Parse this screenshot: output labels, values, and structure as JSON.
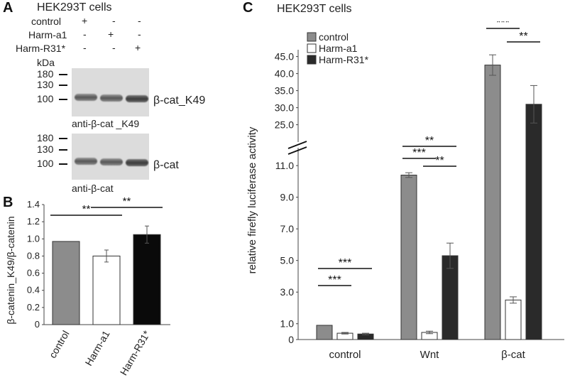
{
  "panel_a": {
    "letter": "A",
    "title": "HEK293T cells",
    "conditions": [
      {
        "label": "control",
        "signs": [
          "+",
          "-",
          "-"
        ]
      },
      {
        "label": "Harm-a1",
        "signs": [
          "-",
          "+",
          "-"
        ]
      },
      {
        "label": "Harm-R31*",
        "signs": [
          "-",
          "-",
          "+"
        ]
      }
    ],
    "kda_label": "kDa",
    "blot1": {
      "markers": [
        "180",
        "130",
        "100"
      ],
      "band_label": "β-cat_K49",
      "antibody": "anti-β-cat _K49"
    },
    "blot2": {
      "markers": [
        "180",
        "130",
        "100"
      ],
      "band_label": "β-cat",
      "antibody": "anti-β-cat"
    }
  },
  "panel_b": {
    "letter": "B"
  },
  "panel_c": {
    "letter": "C",
    "title": "HEK293T cells"
  },
  "chart_data": [
    {
      "type": "bar",
      "panel": "B",
      "categories": [
        "control",
        "Harm-a1",
        "Harm-R31*"
      ],
      "values": [
        0.97,
        0.8,
        1.05
      ],
      "errors": [
        0.0,
        0.07,
        0.1
      ],
      "colors": [
        "#8c8c8c",
        "#ffffff",
        "#0a0a0a"
      ],
      "ylabel": "β-catenin_K49/β-catenin",
      "yticks": [
        "0",
        "0.2",
        "0.4",
        "0.6",
        "0.8",
        "1.0",
        "1.2",
        "1.4"
      ],
      "ylim": [
        0,
        1.4
      ],
      "significance": [
        {
          "from": 0,
          "to": 1,
          "label": "**"
        },
        {
          "from": 1,
          "to": 2,
          "label": "**"
        }
      ]
    },
    {
      "type": "bar",
      "panel": "C",
      "categories": [
        "control",
        "Wnt",
        "β-cat"
      ],
      "series": [
        {
          "name": "control",
          "color": "#8c8c8c",
          "values": [
            0.9,
            10.4,
            42.5
          ],
          "errors": [
            0.0,
            0.15,
            3.0
          ]
        },
        {
          "name": "Harm-a1",
          "color": "#ffffff",
          "values": [
            0.4,
            0.45,
            2.5
          ],
          "errors": [
            0.05,
            0.08,
            0.2
          ]
        },
        {
          "name": "Harm-R31*",
          "color": "#2a2a2a",
          "values": [
            0.35,
            5.3,
            31.0
          ],
          "errors": [
            0.05,
            0.8,
            5.5
          ]
        }
      ],
      "ylabel": "relative firefly luciferase activity",
      "yticks_lower": [
        "0",
        "1.0",
        "3.0",
        "5.0",
        "7.0",
        "9.0",
        "11.0"
      ],
      "yticks_upper": [
        "25.0",
        "30.0",
        "35.0",
        "40.0",
        "45.0"
      ],
      "ylim_lower": [
        0,
        11.5
      ],
      "ylim_upper": [
        22,
        47
      ],
      "axis_break": true,
      "legend_position": "top-left",
      "significance": [
        {
          "group": 0,
          "from": 0,
          "to": 1,
          "label": "***"
        },
        {
          "group": 0,
          "from": 0,
          "to": 2,
          "label": "***"
        },
        {
          "group": 1,
          "from": 0,
          "to": 2,
          "label": "**"
        },
        {
          "group": 1,
          "from": 0,
          "to": 1,
          "label": "***"
        },
        {
          "group": 1,
          "from": 1,
          "to": 2,
          "label": "**"
        },
        {
          "group": 2,
          "from": 0,
          "to": 1,
          "label": "***"
        },
        {
          "group": 2,
          "from": 1,
          "to": 2,
          "label": "**"
        }
      ]
    }
  ]
}
